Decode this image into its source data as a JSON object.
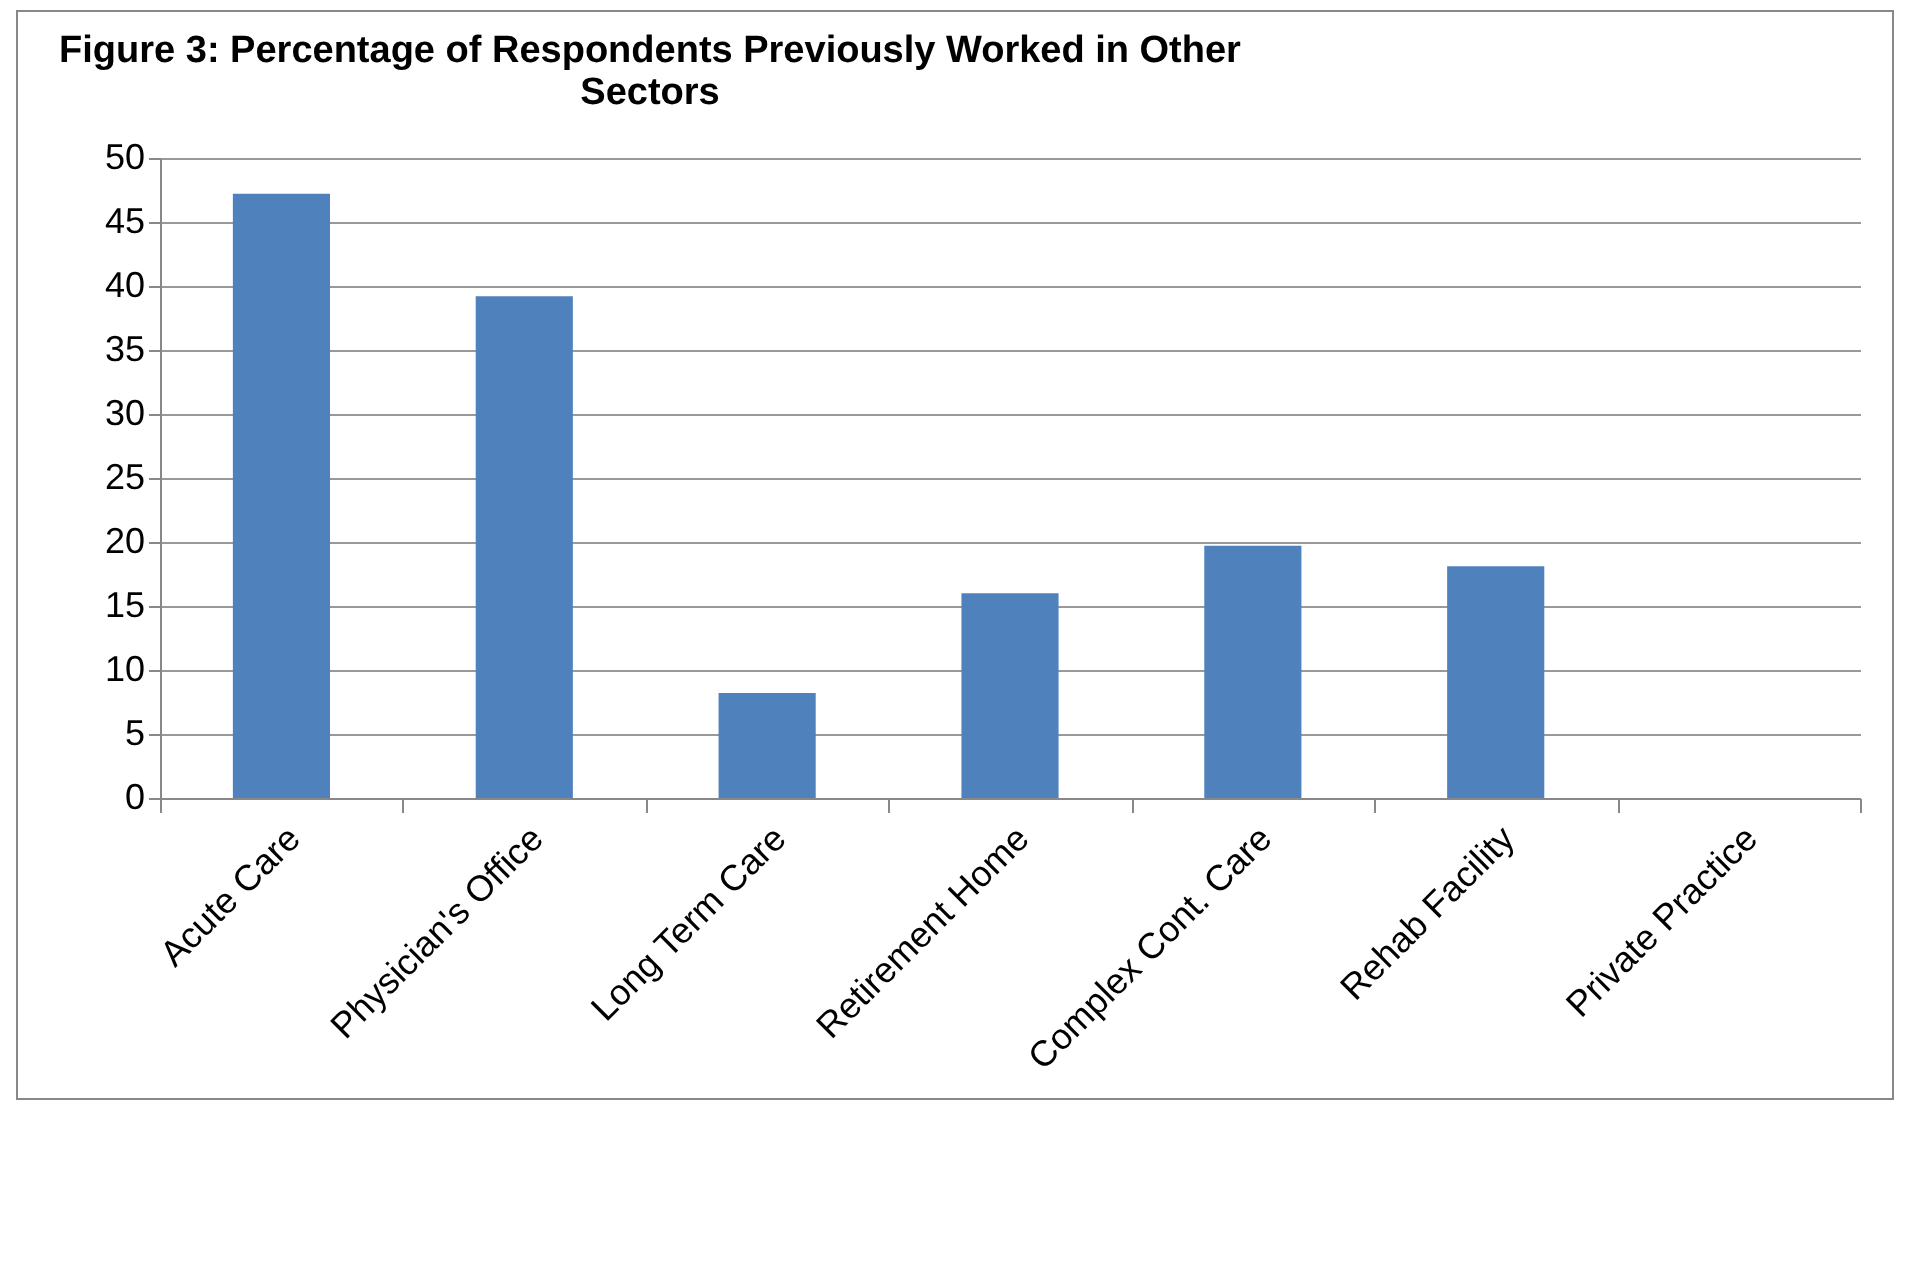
{
  "chart_data": {
    "type": "bar",
    "title": [
      "Figure 3: Percentage of Respondents Previously Worked in Other",
      "Sectors"
    ],
    "categories": [
      "Acute Care",
      "Physician's Office",
      "Long Term Care",
      "Retirement Home",
      "Complex Cont. Care",
      "Rehab Facility",
      "Private Practice"
    ],
    "values": [
      47.2,
      39.2,
      8.2,
      16.0,
      19.7,
      18.1,
      0
    ],
    "color": "#4f81bd",
    "ylim": [
      0,
      50
    ],
    "yticks": [
      0,
      5,
      10,
      15,
      20,
      25,
      30,
      35,
      40,
      45,
      50
    ],
    "grid": "y",
    "legend": false
  }
}
